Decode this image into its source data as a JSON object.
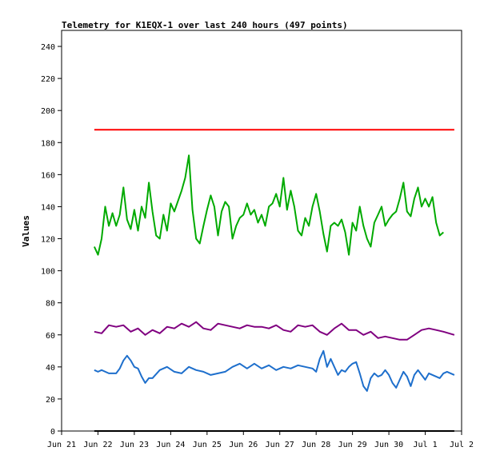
{
  "chart_data": {
    "type": "line",
    "title": "Telemetry for K1EQX-1 over last 240 hours (497 points)",
    "ylabel": "Values",
    "xlabel": "",
    "ylim": [
      0,
      250
    ],
    "yticks": [
      0,
      20,
      40,
      60,
      80,
      100,
      120,
      140,
      160,
      180,
      200,
      220,
      240
    ],
    "xlim": [
      0,
      11
    ],
    "x_tick_labels": [
      "Jun 21",
      "Jun 22",
      "Jun 23",
      "Jun 24",
      "Jun 25",
      "Jun 26",
      "Jun 27",
      "Jun 28",
      "Jun 29",
      "Jun 30",
      "Jul 1",
      "Jul 2"
    ],
    "grid": false,
    "legend": "none",
    "x_range_of_data": [
      0.9,
      10.8
    ],
    "series": [
      {
        "color": "#ff0000",
        "points": [
          [
            0.9,
            188
          ],
          [
            1.3,
            188
          ],
          [
            1.7,
            188
          ],
          [
            2.1,
            188
          ],
          [
            2.5,
            188
          ],
          [
            3.0,
            188
          ],
          [
            3.5,
            188
          ],
          [
            4.0,
            188
          ],
          [
            4.5,
            188
          ],
          [
            5.0,
            188
          ],
          [
            5.5,
            188
          ],
          [
            6.0,
            188
          ],
          [
            6.5,
            188
          ],
          [
            7.0,
            188
          ],
          [
            7.5,
            188
          ],
          [
            8.0,
            188
          ],
          [
            8.5,
            188
          ],
          [
            9.0,
            188
          ],
          [
            9.5,
            188
          ],
          [
            10.0,
            188
          ],
          [
            10.5,
            188
          ],
          [
            10.8,
            188
          ]
        ]
      },
      {
        "color": "#00aa00",
        "points": [
          [
            0.9,
            115
          ],
          [
            1.0,
            110
          ],
          [
            1.1,
            120
          ],
          [
            1.2,
            140
          ],
          [
            1.3,
            128
          ],
          [
            1.4,
            136
          ],
          [
            1.5,
            128
          ],
          [
            1.6,
            135
          ],
          [
            1.7,
            152
          ],
          [
            1.8,
            132
          ],
          [
            1.9,
            126
          ],
          [
            2.0,
            138
          ],
          [
            2.1,
            125
          ],
          [
            2.2,
            140
          ],
          [
            2.3,
            133
          ],
          [
            2.4,
            155
          ],
          [
            2.5,
            137
          ],
          [
            2.6,
            122
          ],
          [
            2.7,
            120
          ],
          [
            2.8,
            135
          ],
          [
            2.9,
            125
          ],
          [
            3.0,
            142
          ],
          [
            3.1,
            137
          ],
          [
            3.3,
            150
          ],
          [
            3.4,
            158
          ],
          [
            3.5,
            172
          ],
          [
            3.6,
            138
          ],
          [
            3.7,
            120
          ],
          [
            3.8,
            117
          ],
          [
            3.9,
            128
          ],
          [
            4.0,
            138
          ],
          [
            4.1,
            147
          ],
          [
            4.2,
            140
          ],
          [
            4.3,
            122
          ],
          [
            4.4,
            137
          ],
          [
            4.5,
            143
          ],
          [
            4.6,
            140
          ],
          [
            4.7,
            120
          ],
          [
            4.8,
            128
          ],
          [
            4.9,
            133
          ],
          [
            5.0,
            135
          ],
          [
            5.1,
            142
          ],
          [
            5.2,
            135
          ],
          [
            5.3,
            138
          ],
          [
            5.4,
            130
          ],
          [
            5.5,
            135
          ],
          [
            5.6,
            128
          ],
          [
            5.7,
            140
          ],
          [
            5.8,
            142
          ],
          [
            5.9,
            148
          ],
          [
            6.0,
            140
          ],
          [
            6.1,
            158
          ],
          [
            6.2,
            138
          ],
          [
            6.3,
            150
          ],
          [
            6.4,
            140
          ],
          [
            6.5,
            125
          ],
          [
            6.6,
            122
          ],
          [
            6.7,
            133
          ],
          [
            6.8,
            128
          ],
          [
            6.9,
            140
          ],
          [
            7.0,
            148
          ],
          [
            7.1,
            137
          ],
          [
            7.2,
            123
          ],
          [
            7.3,
            112
          ],
          [
            7.4,
            128
          ],
          [
            7.5,
            130
          ],
          [
            7.6,
            128
          ],
          [
            7.7,
            132
          ],
          [
            7.8,
            124
          ],
          [
            7.9,
            110
          ],
          [
            8.0,
            130
          ],
          [
            8.1,
            125
          ],
          [
            8.2,
            140
          ],
          [
            8.3,
            128
          ],
          [
            8.4,
            120
          ],
          [
            8.5,
            115
          ],
          [
            8.6,
            130
          ],
          [
            8.7,
            135
          ],
          [
            8.8,
            140
          ],
          [
            8.9,
            128
          ],
          [
            9.0,
            132
          ],
          [
            9.1,
            135
          ],
          [
            9.2,
            137
          ],
          [
            9.3,
            145
          ],
          [
            9.4,
            155
          ],
          [
            9.5,
            137
          ],
          [
            9.6,
            134
          ],
          [
            9.7,
            145
          ],
          [
            9.8,
            152
          ],
          [
            9.9,
            140
          ],
          [
            10.0,
            145
          ],
          [
            10.1,
            140
          ],
          [
            10.2,
            146
          ],
          [
            10.3,
            130
          ],
          [
            10.4,
            122
          ],
          [
            10.5,
            124
          ]
        ]
      },
      {
        "color": "#800080",
        "points": [
          [
            0.9,
            62
          ],
          [
            1.1,
            61
          ],
          [
            1.3,
            66
          ],
          [
            1.5,
            65
          ],
          [
            1.7,
            66
          ],
          [
            1.9,
            62
          ],
          [
            2.1,
            64
          ],
          [
            2.3,
            60
          ],
          [
            2.5,
            63
          ],
          [
            2.7,
            61
          ],
          [
            2.9,
            65
          ],
          [
            3.1,
            64
          ],
          [
            3.3,
            67
          ],
          [
            3.5,
            65
          ],
          [
            3.7,
            68
          ],
          [
            3.9,
            64
          ],
          [
            4.1,
            63
          ],
          [
            4.3,
            67
          ],
          [
            4.5,
            66
          ],
          [
            4.7,
            65
          ],
          [
            4.9,
            64
          ],
          [
            5.1,
            66
          ],
          [
            5.3,
            65
          ],
          [
            5.5,
            65
          ],
          [
            5.7,
            64
          ],
          [
            5.9,
            66
          ],
          [
            6.1,
            63
          ],
          [
            6.3,
            62
          ],
          [
            6.5,
            66
          ],
          [
            6.7,
            65
          ],
          [
            6.9,
            66
          ],
          [
            7.1,
            62
          ],
          [
            7.3,
            60
          ],
          [
            7.5,
            64
          ],
          [
            7.7,
            67
          ],
          [
            7.9,
            63
          ],
          [
            8.1,
            63
          ],
          [
            8.3,
            60
          ],
          [
            8.5,
            62
          ],
          [
            8.7,
            58
          ],
          [
            8.9,
            59
          ],
          [
            9.1,
            58
          ],
          [
            9.3,
            57
          ],
          [
            9.5,
            57
          ],
          [
            9.7,
            60
          ],
          [
            9.9,
            63
          ],
          [
            10.1,
            64
          ],
          [
            10.3,
            63
          ],
          [
            10.5,
            62
          ],
          [
            10.8,
            60
          ]
        ]
      },
      {
        "color": "#1e6fcc",
        "points": [
          [
            0.9,
            38
          ],
          [
            1.0,
            37
          ],
          [
            1.1,
            38
          ],
          [
            1.3,
            36
          ],
          [
            1.5,
            36
          ],
          [
            1.6,
            39
          ],
          [
            1.7,
            44
          ],
          [
            1.8,
            47
          ],
          [
            1.9,
            44
          ],
          [
            2.0,
            40
          ],
          [
            2.1,
            39
          ],
          [
            2.2,
            34
          ],
          [
            2.3,
            30
          ],
          [
            2.4,
            33
          ],
          [
            2.5,
            33
          ],
          [
            2.7,
            38
          ],
          [
            2.9,
            40
          ],
          [
            3.1,
            37
          ],
          [
            3.3,
            36
          ],
          [
            3.5,
            40
          ],
          [
            3.7,
            38
          ],
          [
            3.9,
            37
          ],
          [
            4.1,
            35
          ],
          [
            4.3,
            36
          ],
          [
            4.5,
            37
          ],
          [
            4.7,
            40
          ],
          [
            4.9,
            42
          ],
          [
            5.1,
            39
          ],
          [
            5.3,
            42
          ],
          [
            5.5,
            39
          ],
          [
            5.7,
            41
          ],
          [
            5.9,
            38
          ],
          [
            6.1,
            40
          ],
          [
            6.3,
            39
          ],
          [
            6.5,
            41
          ],
          [
            6.7,
            40
          ],
          [
            6.9,
            39
          ],
          [
            7.0,
            37
          ],
          [
            7.1,
            45
          ],
          [
            7.2,
            50
          ],
          [
            7.3,
            40
          ],
          [
            7.4,
            45
          ],
          [
            7.5,
            40
          ],
          [
            7.6,
            35
          ],
          [
            7.7,
            38
          ],
          [
            7.8,
            37
          ],
          [
            7.9,
            40
          ],
          [
            8.0,
            42
          ],
          [
            8.1,
            43
          ],
          [
            8.2,
            36
          ],
          [
            8.3,
            28
          ],
          [
            8.4,
            25
          ],
          [
            8.5,
            33
          ],
          [
            8.6,
            36
          ],
          [
            8.7,
            34
          ],
          [
            8.8,
            35
          ],
          [
            8.9,
            38
          ],
          [
            9.0,
            35
          ],
          [
            9.1,
            30
          ],
          [
            9.2,
            27
          ],
          [
            9.3,
            32
          ],
          [
            9.4,
            37
          ],
          [
            9.5,
            34
          ],
          [
            9.6,
            28
          ],
          [
            9.7,
            35
          ],
          [
            9.8,
            38
          ],
          [
            9.9,
            35
          ],
          [
            10.0,
            32
          ],
          [
            10.1,
            36
          ],
          [
            10.2,
            35
          ],
          [
            10.3,
            34
          ],
          [
            10.4,
            33
          ],
          [
            10.5,
            36
          ],
          [
            10.6,
            37
          ],
          [
            10.8,
            35
          ]
        ]
      },
      {
        "color": "#000000",
        "points": [
          [
            0.9,
            0
          ],
          [
            10.8,
            0
          ]
        ]
      }
    ]
  }
}
